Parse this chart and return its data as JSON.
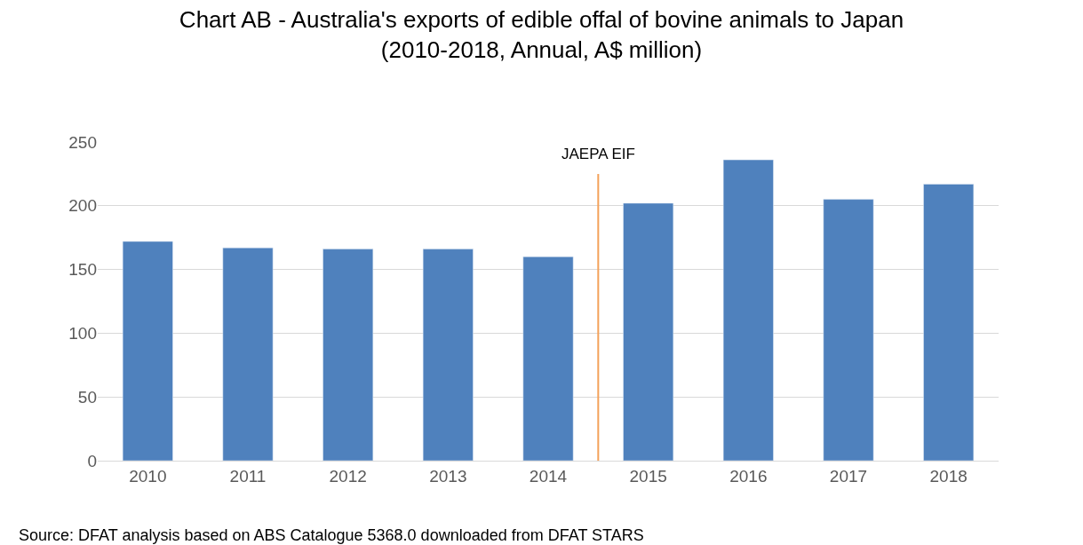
{
  "chart_data": {
    "type": "bar",
    "title": "Chart AB - Australia's exports of edible offal of bovine animals to Japan",
    "subtitle": "(2010-2018, Annual, A$ million)",
    "x": [
      2010,
      2011,
      2012,
      2013,
      2014,
      2015,
      2016,
      2017,
      2018
    ],
    "xlim": [
      2009.5,
      2018.5
    ],
    "xticks": [
      2010,
      2011,
      2012,
      2013,
      2014,
      2015,
      2016,
      2017,
      2018
    ],
    "series": [
      {
        "color": "#4f81bd",
        "values": [
          172,
          167,
          166,
          166,
          160,
          202,
          236,
          205,
          217
        ]
      }
    ],
    "ylim": [
      0,
      250
    ],
    "yticks": [
      0,
      50,
      100,
      150,
      200,
      250
    ],
    "grid": "y",
    "ref_lines": [
      {
        "axis": "x",
        "value": 2014.5,
        "label": "JAEPA EIF",
        "color": "#f4a15a",
        "line_style": "solid"
      }
    ],
    "annotations": [
      "Source: DFAT analysis based on ABS Catalogue 5368.0 downloaded from DFAT STARS"
    ]
  }
}
